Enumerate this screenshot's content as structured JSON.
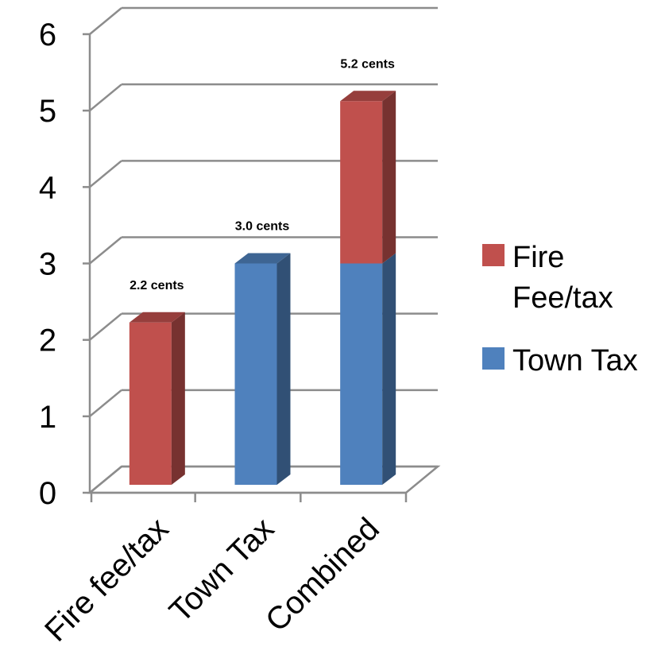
{
  "chart_data": {
    "type": "bar",
    "stacked": true,
    "three_d": true,
    "categories": [
      "Fire fee/tax",
      "Town Tax",
      "Combined"
    ],
    "series": [
      {
        "name": "Town Tax",
        "values": [
          0,
          3.0,
          3.0
        ],
        "color": "#4f81bd"
      },
      {
        "name": "Fire Fee/tax",
        "values": [
          2.2,
          0,
          2.2
        ],
        "color": "#c0504d"
      }
    ],
    "data_labels": [
      "2.2 cents",
      "3.0 cents",
      "5.2 cents"
    ],
    "ylim": [
      0,
      6
    ],
    "yticks": [
      "0",
      "1",
      "2",
      "3",
      "4",
      "5",
      "6"
    ],
    "grid": true,
    "legend": {
      "placement": "right",
      "entries": [
        {
          "lines": [
            "Fire",
            "Fee/tax"
          ],
          "color": "#c0504d"
        },
        {
          "lines": [
            "Town Tax"
          ],
          "color": "#4f81bd"
        }
      ]
    }
  }
}
